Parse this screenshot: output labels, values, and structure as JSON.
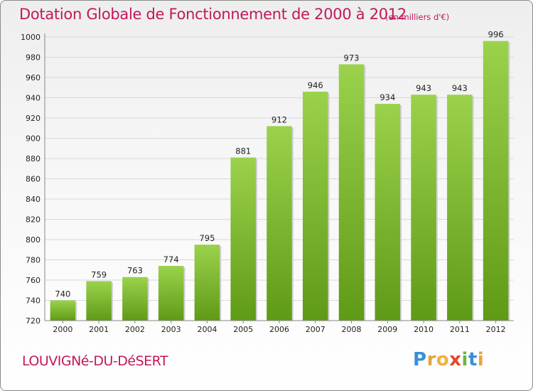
{
  "title": "Dotation Globale de Fonctionnement de 2000 à 2012",
  "subtitle": "(en milliers d'€)",
  "commune": "LOUVIGNé-DU-DéSERT",
  "logo": {
    "text": "Proxiti",
    "letters": [
      {
        "ch": "P",
        "color": "#3a8fd6"
      },
      {
        "ch": "r",
        "color": "#e8a33b"
      },
      {
        "ch": "o",
        "color": "#f0b23a"
      },
      {
        "ch": "x",
        "color": "#e04a2a"
      },
      {
        "ch": "i",
        "color": "#6ab83c"
      },
      {
        "ch": "t",
        "color": "#3a8fd6"
      },
      {
        "ch": "i",
        "color": "#e8a33b"
      }
    ]
  },
  "colors": {
    "title": "#c2185b",
    "bar_top": "#9bd24c",
    "bar_bottom": "#5f9a17",
    "axis_text": "#222222",
    "grid": "#d8d8d8"
  },
  "chart_data": {
    "type": "bar",
    "title": "Dotation Globale de Fonctionnement de 2000 à 2012",
    "subtitle": "(en milliers d'€)",
    "categories": [
      "2000",
      "2001",
      "2002",
      "2003",
      "2004",
      "2005",
      "2006",
      "2007",
      "2008",
      "2009",
      "2010",
      "2011",
      "2012"
    ],
    "values": [
      740,
      759,
      763,
      774,
      795,
      881,
      912,
      946,
      973,
      934,
      943,
      943,
      996
    ],
    "ylim": [
      720,
      1000
    ],
    "yticks": [
      720,
      740,
      760,
      780,
      800,
      820,
      840,
      860,
      880,
      900,
      920,
      940,
      960,
      980,
      1000
    ],
    "grid": true,
    "data_labels": true
  }
}
